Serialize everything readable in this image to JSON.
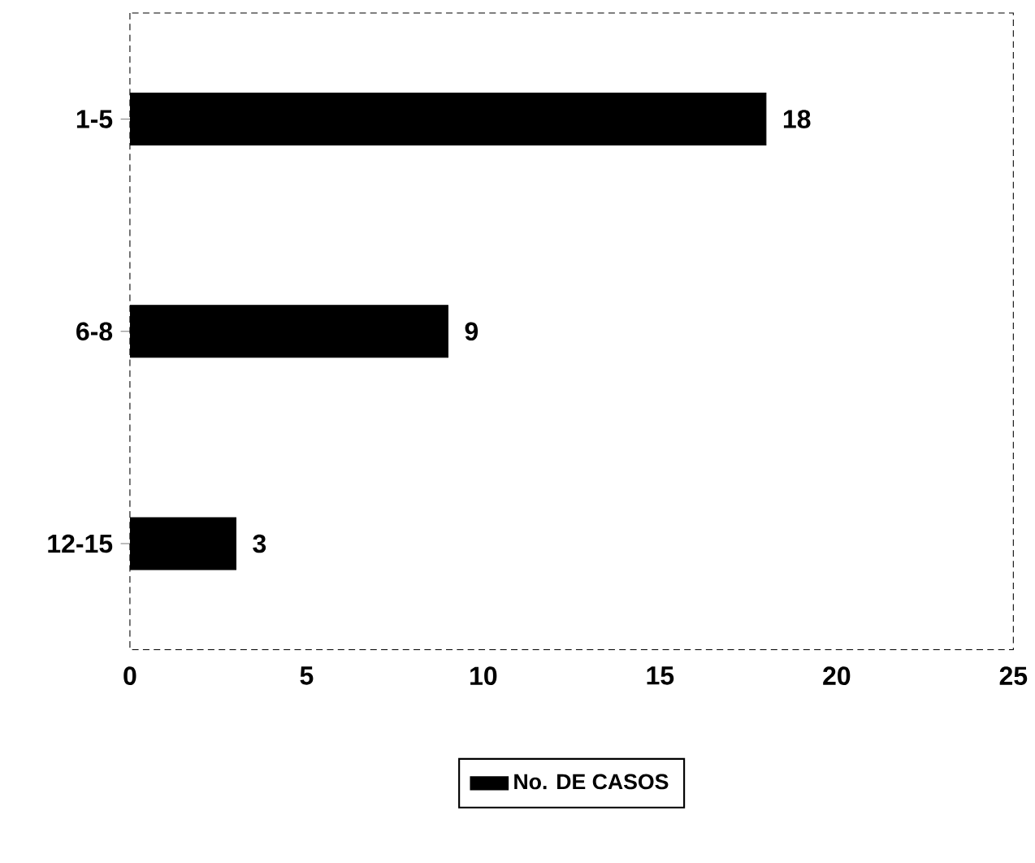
{
  "chart_data": {
    "type": "bar",
    "orientation": "horizontal",
    "categories": [
      "1-5",
      "6-8",
      "12-15"
    ],
    "series": [
      {
        "name": "No. DE CASOS",
        "color": "#000000",
        "values": [
          18,
          9,
          3
        ]
      }
    ],
    "xlim": [
      0,
      25
    ],
    "xticks": [
      0,
      5,
      10,
      15,
      20,
      25
    ],
    "data_labels": true,
    "legend": "bottom"
  }
}
